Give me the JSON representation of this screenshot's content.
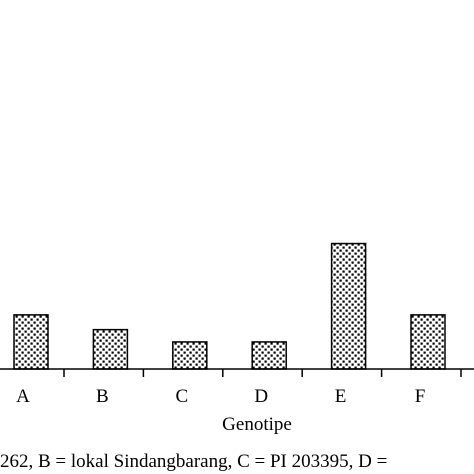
{
  "chart_data": {
    "type": "bar",
    "categories": [
      "A",
      "B",
      "C",
      "D",
      "E",
      "F"
    ],
    "values": [
      2.2,
      1.6,
      1.1,
      1.1,
      5.1,
      2.2
    ],
    "title": "",
    "xlabel": "Genotipe",
    "ylabel": "",
    "ylim": [
      0,
      15
    ],
    "grid": false,
    "footnote": "262, B = lokal Sindangbarang, C = PI 203395, D ="
  }
}
